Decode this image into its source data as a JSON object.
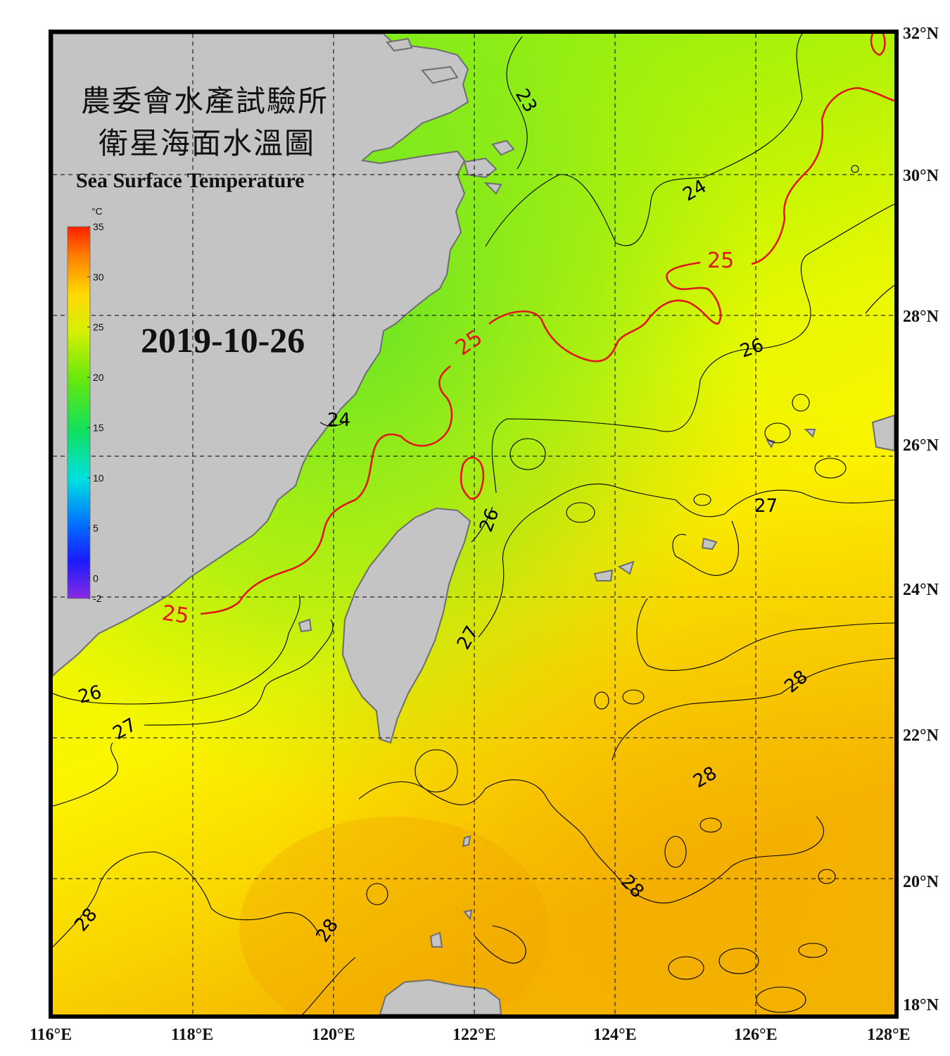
{
  "title": {
    "line1": "農委會水產試驗所",
    "line2": "衛星海面水溫圖",
    "english": "Sea Surface Temperature"
  },
  "date": "2019-10-26",
  "colorbar": {
    "unit": "°C",
    "min": -2,
    "max": 35,
    "ticks": [
      "35",
      "30",
      "25",
      "20",
      "15",
      "10",
      "5",
      "0",
      "-2"
    ]
  },
  "axes": {
    "lon_labels": [
      "116°E",
      "118°E",
      "120°E",
      "122°E",
      "124°E",
      "126°E",
      "128°E"
    ],
    "lat_labels": [
      "32°N",
      "30°N",
      "28°N",
      "26°N",
      "24°N",
      "22°N",
      "20°N",
      "18°N"
    ]
  },
  "contour_labels": [
    "23",
    "24",
    "25",
    "25",
    "24",
    "26",
    "26",
    "27",
    "27",
    "26",
    "27",
    "28",
    "28",
    "28",
    "28",
    "28",
    "25"
  ],
  "colors": {
    "land": "#c4c4c4",
    "land_edge": "#707070",
    "frame": "#000000",
    "contour": "#000000",
    "contour_25": "#e01818"
  }
}
